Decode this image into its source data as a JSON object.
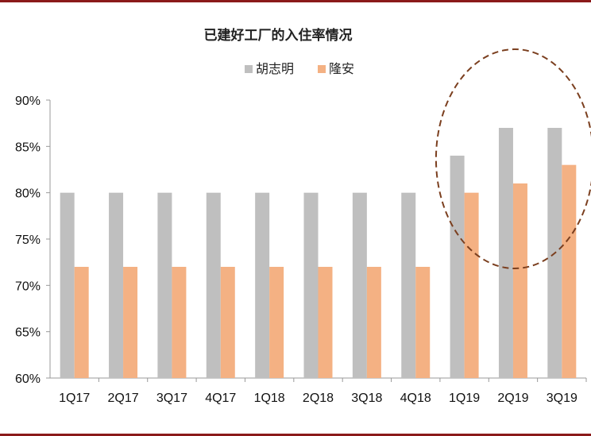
{
  "chart_data": {
    "type": "bar",
    "title": "已建好工厂的入住率情况",
    "categories": [
      "1Q17",
      "2Q17",
      "3Q17",
      "4Q17",
      "1Q18",
      "2Q18",
      "3Q18",
      "4Q18",
      "1Q19",
      "2Q19",
      "3Q19"
    ],
    "series": [
      {
        "name": "胡志明",
        "color": "#bfbfbf",
        "values": [
          80,
          80,
          80,
          80,
          80,
          80,
          80,
          80,
          84,
          87,
          87
        ]
      },
      {
        "name": "隆安",
        "color": "#f4b183",
        "values": [
          72,
          72,
          72,
          72,
          72,
          72,
          72,
          72,
          80,
          81,
          83
        ]
      }
    ],
    "ylim": [
      60,
      90
    ],
    "yticks": [
      60,
      65,
      70,
      75,
      80,
      85,
      90
    ],
    "ytick_labels": [
      "60%",
      "65%",
      "70%",
      "75%",
      "80%",
      "85%",
      "90%"
    ],
    "xlabel": "",
    "ylabel": "",
    "legend": "top-center",
    "grid": false,
    "annotation": {
      "shape": "dashed-ellipse",
      "highlights": [
        "1Q19",
        "2Q19",
        "3Q19"
      ],
      "color": "#7b3f1f"
    }
  }
}
